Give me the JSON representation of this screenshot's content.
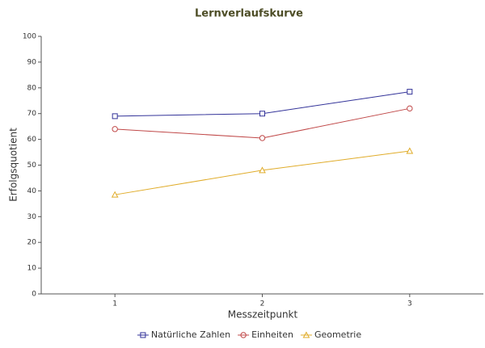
{
  "chart_data": {
    "type": "line",
    "title": "Lernverlaufskurve",
    "x_label": "Messzeitpunkt",
    "y_label": "Erfolgsquotient",
    "categories": [
      "1",
      "2",
      "3"
    ],
    "series": [
      {
        "name": "Natürliche Zahlen",
        "color": "#333399",
        "marker": "square",
        "values": [
          69,
          70,
          78.5
        ]
      },
      {
        "name": "Einheiten",
        "color": "#c04848",
        "marker": "circle",
        "values": [
          64,
          60.5,
          72
        ]
      },
      {
        "name": "Geometrie",
        "color": "#e0ac2a",
        "marker": "triangle",
        "values": [
          38.5,
          48,
          55.5
        ]
      }
    ],
    "ylim": [
      0,
      100
    ],
    "yticks": [
      0,
      10,
      20,
      30,
      40,
      50,
      60,
      70,
      80,
      90,
      100
    ],
    "grid": false,
    "legend": "bottom"
  }
}
